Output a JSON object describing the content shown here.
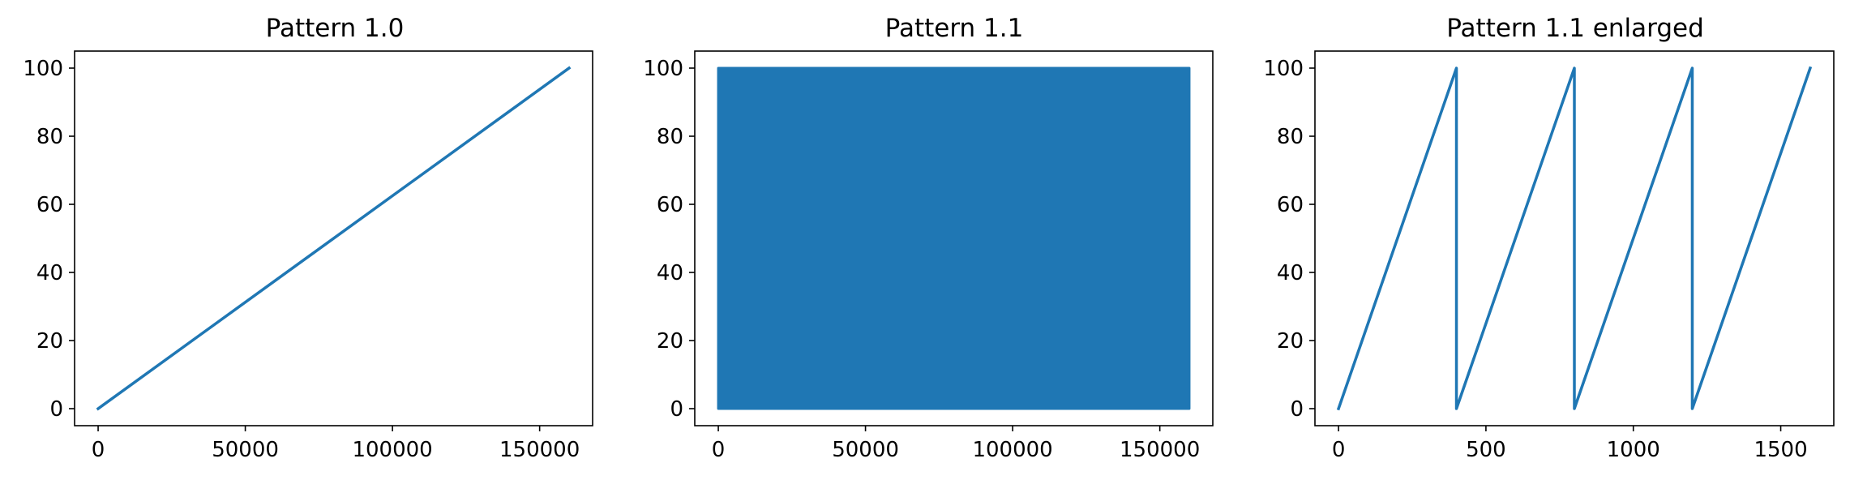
{
  "colors": {
    "series": "#1f77b4",
    "axes": "#000000",
    "background": "#ffffff"
  },
  "chart_data": [
    {
      "type": "line",
      "title": "Pattern 1.0",
      "xlabel": "",
      "ylabel": "",
      "xlim": [
        -8000,
        168000
      ],
      "ylim": [
        -5,
        105
      ],
      "xticks": [
        0,
        50000,
        100000,
        150000
      ],
      "yticks": [
        0,
        20,
        40,
        60,
        80,
        100
      ],
      "grid": false,
      "series": [
        {
          "x": [
            0,
            160000
          ],
          "y": [
            0,
            100
          ]
        }
      ]
    },
    {
      "type": "area",
      "title": "Pattern 1.1",
      "xlabel": "",
      "ylabel": "",
      "xlim": [
        -8000,
        168000
      ],
      "ylim": [
        -5,
        105
      ],
      "xticks": [
        0,
        50000,
        100000,
        150000
      ],
      "yticks": [
        0,
        20,
        40,
        60,
        80,
        100
      ],
      "grid": false,
      "series": [
        {
          "x": [
            0,
            160000
          ],
          "y_min": [
            0,
            0
          ],
          "y_max": [
            100,
            100
          ]
        }
      ]
    },
    {
      "type": "line",
      "title": "Pattern 1.1 enlarged",
      "xlabel": "",
      "ylabel": "",
      "xlim": [
        -80,
        1680
      ],
      "ylim": [
        -5,
        105
      ],
      "xticks": [
        0,
        500,
        1000,
        1500
      ],
      "yticks": [
        0,
        20,
        40,
        60,
        80,
        100
      ],
      "grid": false,
      "series": [
        {
          "x": [
            0,
            400,
            400,
            800,
            800,
            1200,
            1200,
            1600
          ],
          "y": [
            0,
            100,
            0,
            100,
            0,
            100,
            0,
            100
          ]
        }
      ]
    }
  ]
}
